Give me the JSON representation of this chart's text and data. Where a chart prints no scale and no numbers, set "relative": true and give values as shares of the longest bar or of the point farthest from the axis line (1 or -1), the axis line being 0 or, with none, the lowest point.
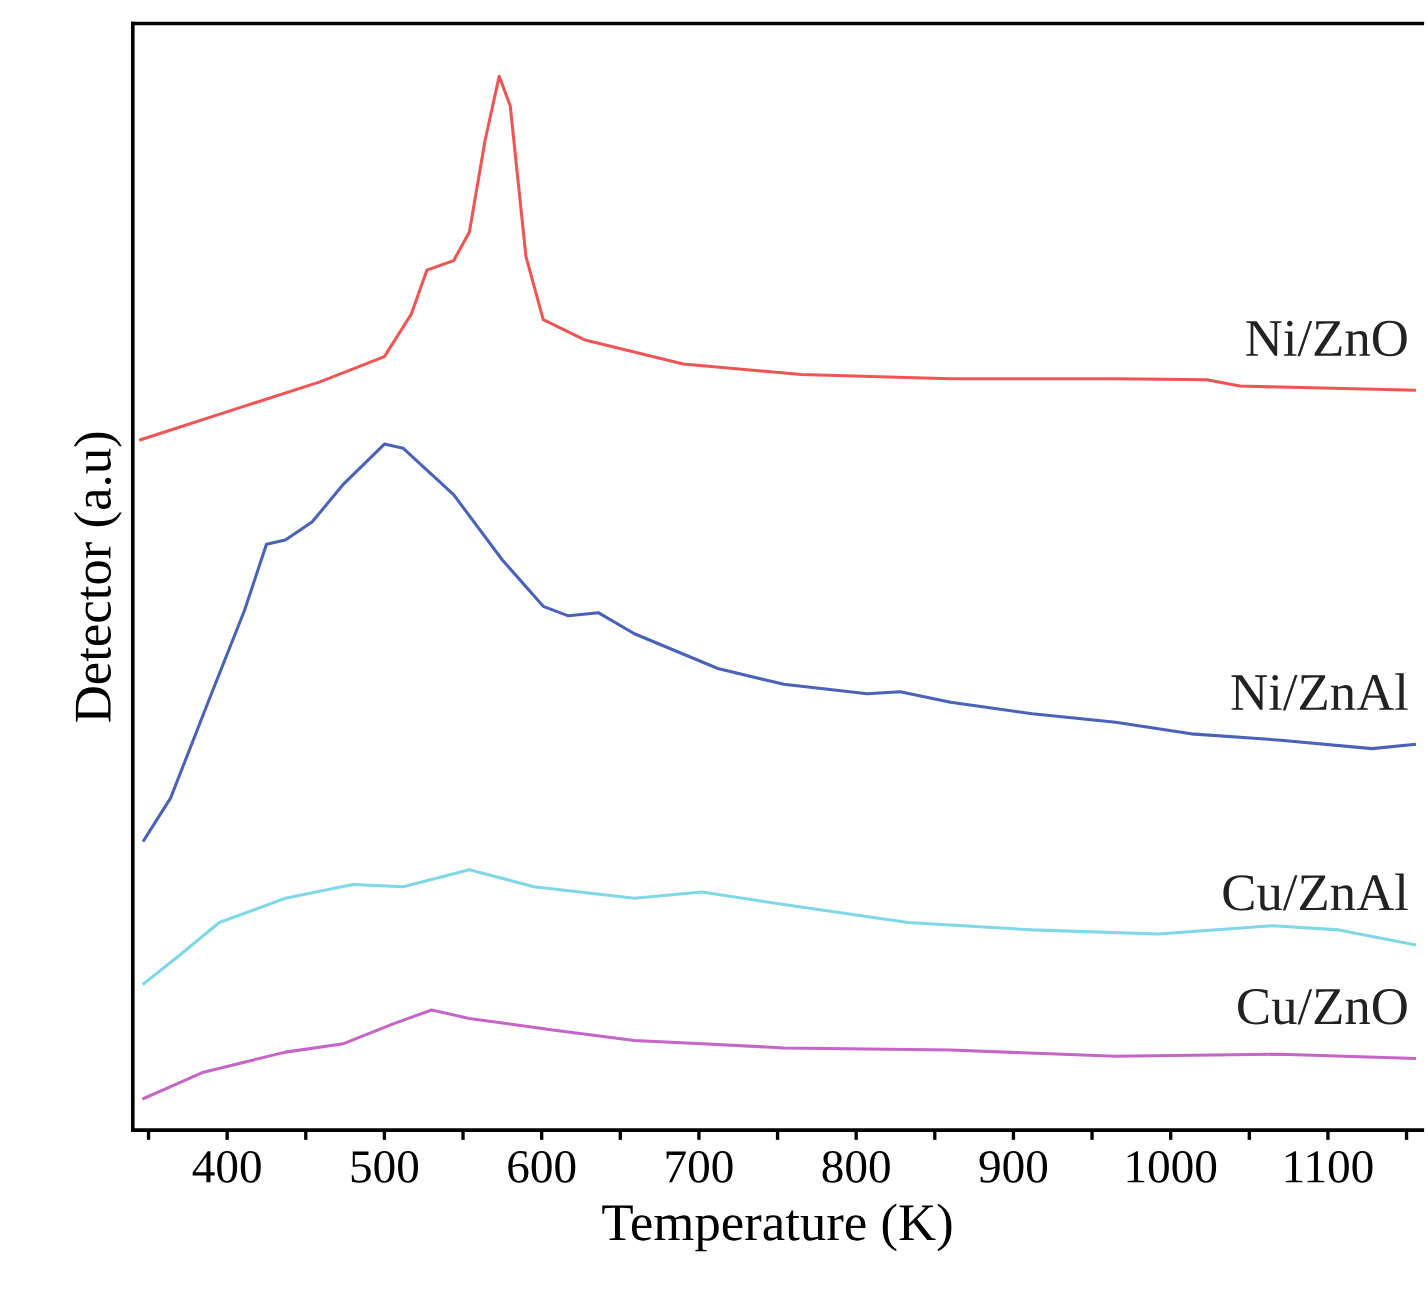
{
  "chart_data": {
    "type": "line",
    "relative": true,
    "xlabel": "Temperature (K)",
    "ylabel": "Detector (a.u)",
    "xlim": [
      340,
      1160
    ],
    "xticks": [
      {
        "value": 350,
        "label": null
      },
      400,
      {
        "value": 450,
        "label": null
      },
      500,
      {
        "value": 550,
        "label": null
      },
      600,
      {
        "value": 650,
        "label": null
      },
      700,
      {
        "value": 750,
        "label": null
      },
      800,
      {
        "value": 850,
        "label": null
      },
      900,
      {
        "value": 950,
        "label": null
      },
      1000,
      {
        "value": 1050,
        "label": null
      },
      1100,
      {
        "value": 1150,
        "label": null
      }
    ],
    "marker": "none",
    "line_style": "solid",
    "series": [
      {
        "name": "Ni/ZnO",
        "color": "#f05555",
        "x": [
          345,
          411,
          459,
          500,
          517,
          527,
          544,
          554,
          564,
          573,
          580,
          590,
          601,
          627,
          690,
          765,
          860,
          965,
          1023,
          1044,
          1155
        ],
        "values": [
          0.655,
          0.687,
          0.71,
          0.734,
          0.774,
          0.816,
          0.825,
          0.852,
          0.939,
          1.0,
          0.972,
          0.829,
          0.769,
          0.75,
          0.727,
          0.717,
          0.713,
          0.713,
          0.712,
          0.706,
          0.702
        ]
      },
      {
        "name": "Ni/ZnAl",
        "color": "#4a62b8",
        "x": [
          347,
          364,
          390,
          411,
          425,
          437,
          454,
          474,
          500,
          512,
          544,
          575,
          601,
          617,
          636,
          659,
          712,
          754,
          807,
          828,
          860,
          912,
          965,
          1013,
          1070,
          1128,
          1155
        ],
        "values": [
          0.275,
          0.315,
          0.414,
          0.493,
          0.556,
          0.56,
          0.577,
          0.613,
          0.651,
          0.647,
          0.603,
          0.541,
          0.497,
          0.488,
          0.491,
          0.471,
          0.438,
          0.423,
          0.414,
          0.416,
          0.406,
          0.395,
          0.387,
          0.376,
          0.37,
          0.362,
          0.366
        ]
      },
      {
        "name": "Cu/ZnAl",
        "color": "#80d8e6",
        "x": [
          347,
          369,
          395,
          437,
          480,
          512,
          554,
          595,
          659,
          702,
          754,
          833,
          912,
          992,
          1065,
          1107,
          1155
        ],
        "values": [
          0.139,
          0.165,
          0.197,
          0.22,
          0.233,
          0.231,
          0.247,
          0.231,
          0.22,
          0.226,
          0.214,
          0.197,
          0.19,
          0.186,
          0.194,
          0.19,
          0.176
        ]
      },
      {
        "name": "Cu/ZnO",
        "color": "#c565c5",
        "x": [
          347,
          385,
          437,
          474,
          506,
          530,
          554,
          607,
          659,
          702,
          754,
          860,
          965,
          1070,
          1155
        ],
        "values": [
          0.03,
          0.055,
          0.074,
          0.082,
          0.101,
          0.114,
          0.106,
          0.095,
          0.085,
          0.082,
          0.078,
          0.076,
          0.07,
          0.072,
          0.068
        ]
      }
    ]
  }
}
